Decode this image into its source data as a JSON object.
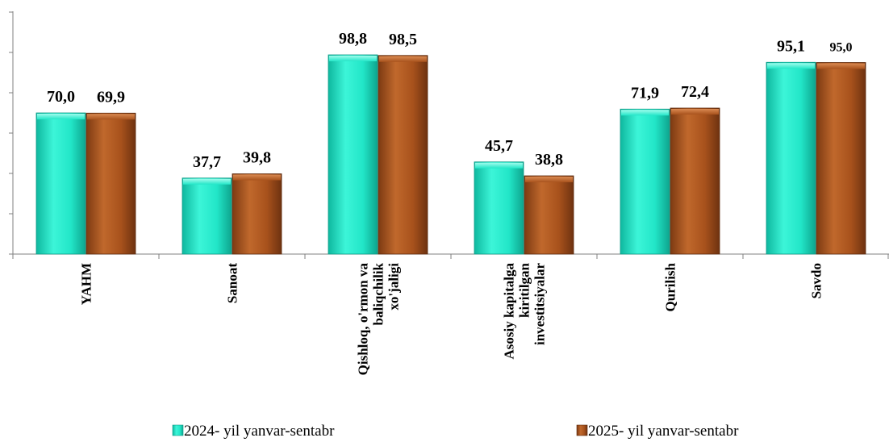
{
  "chart_data": {
    "type": "bar",
    "categories": [
      [
        "YAHM"
      ],
      [
        "Sanoat"
      ],
      [
        "Qishloq, o'rmon va",
        "baliqchilik",
        "xo'jaligi"
      ],
      [
        "Asosiy kapitalga",
        "kiritilgan",
        "investitsiyalar"
      ],
      [
        "Qurilish"
      ],
      [
        "Savdo"
      ]
    ],
    "series": [
      {
        "name": "2024- yil yanvar-sentabr",
        "color": "#22e8cc",
        "values": [
          70.0,
          37.7,
          98.8,
          45.7,
          71.9,
          95.1
        ],
        "labels": [
          "70,0",
          "37,7",
          "98,8",
          "45,7",
          "71,9",
          "95,1"
        ]
      },
      {
        "name": "2025- yil yanvar-sentabr",
        "color": "#a8521c",
        "values": [
          69.9,
          39.8,
          98.5,
          38.8,
          72.4,
          95.0
        ],
        "labels": [
          "69,9",
          "39,8",
          "98,5",
          "38,8",
          "72,4",
          "95,0"
        ]
      }
    ],
    "ylim": [
      0,
      120
    ],
    "y_ticks": [
      0,
      20,
      40,
      60,
      80,
      100,
      120
    ],
    "y_tick_labels_visible": false,
    "grid": false,
    "legend_position": "bottom"
  }
}
